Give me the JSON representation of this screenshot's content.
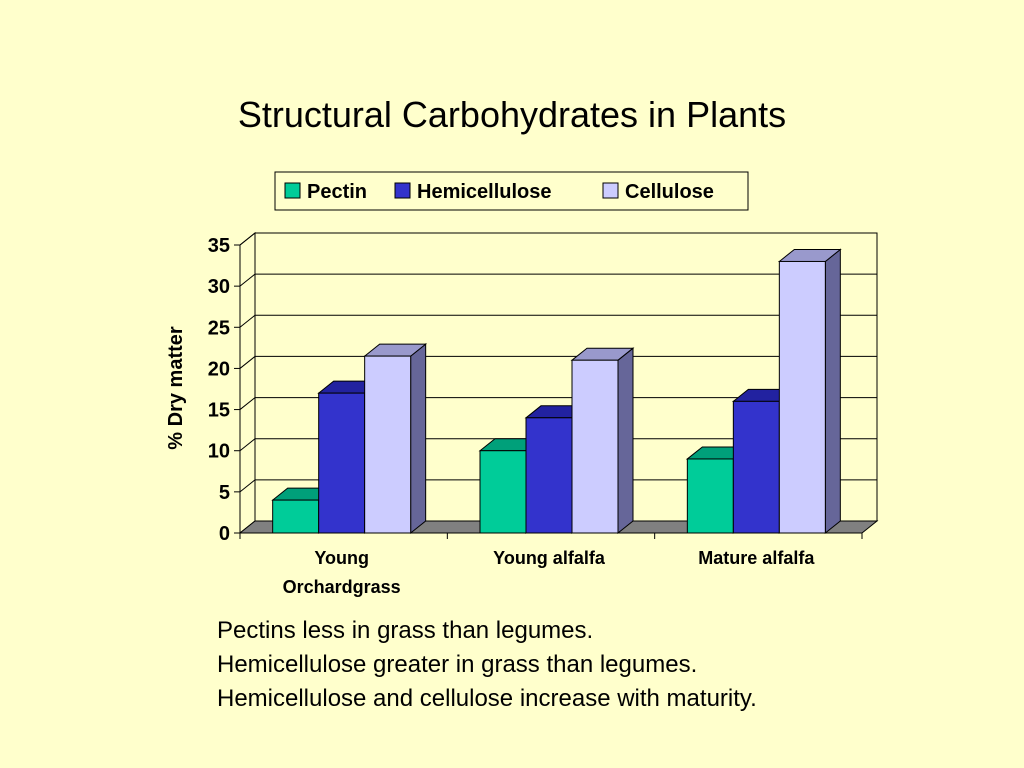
{
  "slide": {
    "title": "Structural Carbohydrates in Plants",
    "notes": [
      "Pectins less in grass than legumes.",
      "Hemicellulose greater in grass than legumes.",
      "Hemicellulose and cellulose increase with maturity."
    ]
  },
  "chart_data": {
    "type": "bar",
    "title": "",
    "xlabel": "",
    "ylabel": "% Dry matter",
    "ylim": [
      0,
      35
    ],
    "yticks": [
      0,
      5,
      10,
      15,
      20,
      25,
      30,
      35
    ],
    "grid": true,
    "legend_position": "top",
    "three_d": true,
    "categories": [
      "Young Orchardgrass",
      "Young alfalfa",
      "Mature alfalfa"
    ],
    "category_lines": [
      [
        "Young",
        "Orchardgrass"
      ],
      [
        "Young alfalfa"
      ],
      [
        "Mature alfalfa"
      ]
    ],
    "series": [
      {
        "name": "Pectin",
        "values": [
          4,
          10,
          9
        ],
        "color": "#00CC99",
        "top_color": "#00A07A",
        "side_color": "#008866"
      },
      {
        "name": "Hemicellulose",
        "values": [
          17,
          14,
          16
        ],
        "color": "#3333CC",
        "top_color": "#2222A0",
        "side_color": "#1A1A88"
      },
      {
        "name": "Cellulose",
        "values": [
          21.5,
          21,
          33
        ],
        "color": "#CCCCFF",
        "top_color": "#9999CC",
        "side_color": "#666699"
      }
    ],
    "colors": {
      "plot_background": "#FFFFCC",
      "floor": "#808080",
      "gridline": "#000000"
    }
  }
}
